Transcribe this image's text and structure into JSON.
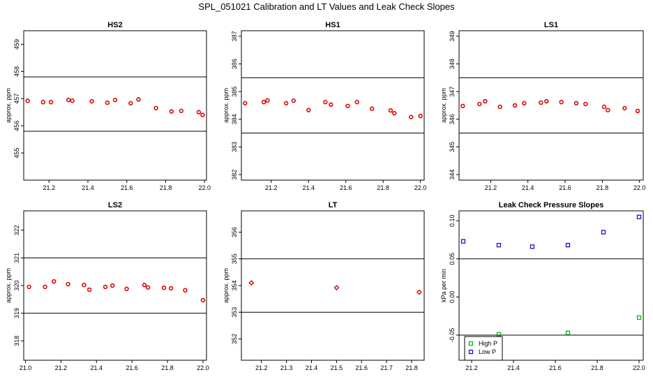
{
  "page": {
    "title": "SPL_051021  Calibration and LT Values and Leak Check Slopes"
  },
  "colors": {
    "point": "#e00000",
    "high_p": "#00b000",
    "low_p": "#0000cc",
    "axis": "#000000"
  },
  "chart_data": [
    {
      "id": "hs2",
      "type": "scatter",
      "title": "HS2",
      "ylabel": "approx. ppm",
      "xlim": [
        21.07,
        22.01
      ],
      "ylim": [
        454.0,
        459.5
      ],
      "xticks": [
        "21.2",
        "21.4",
        "21.6",
        "21.8",
        "22.0"
      ],
      "yticks": [
        "455",
        "456",
        "457",
        "458",
        "459"
      ],
      "reference_lines": [
        455.8,
        457.8
      ],
      "marker": "circle",
      "x": [
        21.09,
        21.17,
        21.21,
        21.3,
        21.32,
        21.42,
        21.5,
        21.54,
        21.62,
        21.66,
        21.75,
        21.83,
        21.88,
        21.97,
        21.99
      ],
      "y": [
        456.92,
        456.87,
        456.87,
        456.95,
        456.92,
        456.9,
        456.85,
        456.95,
        456.83,
        456.97,
        456.65,
        456.53,
        456.55,
        456.5,
        456.4
      ]
    },
    {
      "id": "hs1",
      "type": "scatter",
      "title": "HS1",
      "ylabel": "approx. ppm",
      "xlim": [
        21.04,
        22.02
      ],
      "ylim": [
        381.8,
        387.2
      ],
      "xticks": [
        "21.2",
        "21.4",
        "21.6",
        "21.8",
        "22.0"
      ],
      "yticks": [
        "382",
        "383",
        "384",
        "385",
        "386",
        "387"
      ],
      "reference_lines": [
        383.5,
        385.5
      ],
      "marker": "circle",
      "x": [
        21.06,
        21.16,
        21.18,
        21.28,
        21.32,
        21.4,
        21.49,
        21.52,
        21.61,
        21.66,
        21.74,
        21.84,
        21.86,
        21.95,
        22.0
      ],
      "y": [
        384.58,
        384.62,
        384.68,
        384.58,
        384.67,
        384.33,
        384.62,
        384.53,
        384.48,
        384.62,
        384.38,
        384.32,
        384.22,
        384.08,
        384.12
      ]
    },
    {
      "id": "ls1",
      "type": "scatter",
      "title": "LS1",
      "ylabel": "approx. ppm",
      "xlim": [
        21.03,
        22.02
      ],
      "ylim": [
        343.8,
        349.2
      ],
      "xticks": [
        "21.2",
        "21.4",
        "21.6",
        "21.8",
        "22.0"
      ],
      "yticks": [
        "344",
        "345",
        "346",
        "347",
        "348",
        "349"
      ],
      "reference_lines": [
        345.5,
        347.5
      ],
      "marker": "circle",
      "x": [
        21.05,
        21.14,
        21.17,
        21.25,
        21.33,
        21.38,
        21.47,
        21.5,
        21.58,
        21.66,
        21.71,
        21.81,
        21.83,
        21.92,
        21.99
      ],
      "y": [
        346.48,
        346.55,
        346.65,
        346.45,
        346.5,
        346.58,
        346.6,
        346.65,
        346.62,
        346.58,
        346.55,
        346.45,
        346.33,
        346.4,
        346.3
      ]
    },
    {
      "id": "ls2",
      "type": "scatter",
      "title": "LS2",
      "ylabel": "approx. ppm",
      "xlim": [
        20.99,
        22.02
      ],
      "ylim": [
        317.3,
        322.7
      ],
      "xticks": [
        "21.0",
        "21.2",
        "21.4",
        "21.6",
        "21.8",
        "22.0"
      ],
      "yticks": [
        "318",
        "319",
        "320",
        "321",
        "322"
      ],
      "reference_lines": [
        319.0,
        321.0
      ],
      "marker": "circle",
      "x": [
        21.02,
        21.11,
        21.16,
        21.24,
        21.33,
        21.36,
        21.45,
        21.49,
        21.57,
        21.67,
        21.69,
        21.78,
        21.82,
        21.9,
        22.0
      ],
      "y": [
        319.95,
        319.95,
        320.15,
        320.05,
        320.02,
        319.85,
        319.95,
        320.0,
        319.88,
        320.02,
        319.93,
        319.92,
        319.9,
        319.83,
        319.47
      ]
    },
    {
      "id": "lt",
      "type": "scatter",
      "title": "LT",
      "ylabel": "approx. ppm",
      "xlim": [
        21.12,
        21.85
      ],
      "ylim": [
        351.2,
        356.8
      ],
      "xticks": [
        "21.2",
        "21.3",
        "21.4",
        "21.5",
        "21.6",
        "21.7",
        "21.8"
      ],
      "yticks": [
        "352",
        "353",
        "354",
        "355",
        "356"
      ],
      "reference_lines": [
        353.0,
        355.0
      ],
      "marker": "diamond",
      "x": [
        21.16,
        21.5,
        21.83
      ],
      "y": [
        354.1,
        353.92,
        353.75
      ]
    },
    {
      "id": "leak",
      "type": "scatter",
      "title": "Leak Check Pressure Slopes",
      "ylabel": "kPa per min",
      "xlim": [
        21.14,
        22.02
      ],
      "ylim": [
        -0.083,
        0.113
      ],
      "xticks": [
        "21.2",
        "21.4",
        "21.6",
        "21.8",
        "22.0"
      ],
      "yticks": [
        "-0.05",
        "0.00",
        "0.05",
        "0.10"
      ],
      "reference_lines": [
        -0.05,
        0.05
      ],
      "marker": "square",
      "legend": {
        "position": "bottom-left",
        "entries": [
          "High P",
          "Low P"
        ]
      },
      "series": [
        {
          "name": "High P",
          "color": "#00b000",
          "x": [
            21.33,
            21.66,
            22.0
          ],
          "y": [
            -0.049,
            -0.047,
            -0.027
          ]
        },
        {
          "name": "Low P",
          "color": "#0000cc",
          "x": [
            21.16,
            21.33,
            21.49,
            21.66,
            21.83,
            22.0
          ],
          "y": [
            0.073,
            0.068,
            0.066,
            0.068,
            0.085,
            0.105
          ]
        }
      ]
    }
  ]
}
